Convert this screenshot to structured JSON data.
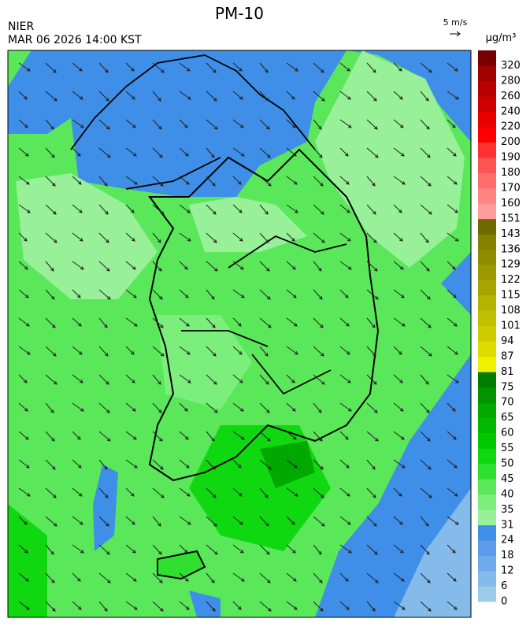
{
  "header": {
    "title": "PM-10",
    "source": "NIER",
    "datetime": "MAR 06 2026 14:00 KST",
    "wind_scale": "5 m/s"
  },
  "legend": {
    "unit": "μg/m³",
    "ticks": [
      0,
      6,
      12,
      18,
      24,
      31,
      35,
      40,
      45,
      50,
      55,
      60,
      65,
      70,
      75,
      81,
      87,
      94,
      101,
      108,
      115,
      122,
      129,
      136,
      143,
      151,
      160,
      170,
      180,
      190,
      200,
      220,
      240,
      260,
      280,
      320
    ],
    "colors": [
      "#9ccbea",
      "#84bbea",
      "#6eabea",
      "#5a9cea",
      "#3f8ee8",
      "#98f098",
      "#7cee7c",
      "#5ae85a",
      "#30e030",
      "#10d810",
      "#00c800",
      "#00b800",
      "#00a800",
      "#009400",
      "#007c00",
      "#f0f000",
      "#dcdc00",
      "#cccc00",
      "#c0c000",
      "#b4b400",
      "#a8a400",
      "#9c9800",
      "#908c00",
      "#848000",
      "#706800",
      "#ff9c9c",
      "#ff8484",
      "#ff6c6c",
      "#ff5454",
      "#ff3030",
      "#ff0000",
      "#e80000",
      "#d00000",
      "#b80000",
      "#a00000",
      "#780000"
    ]
  }
}
